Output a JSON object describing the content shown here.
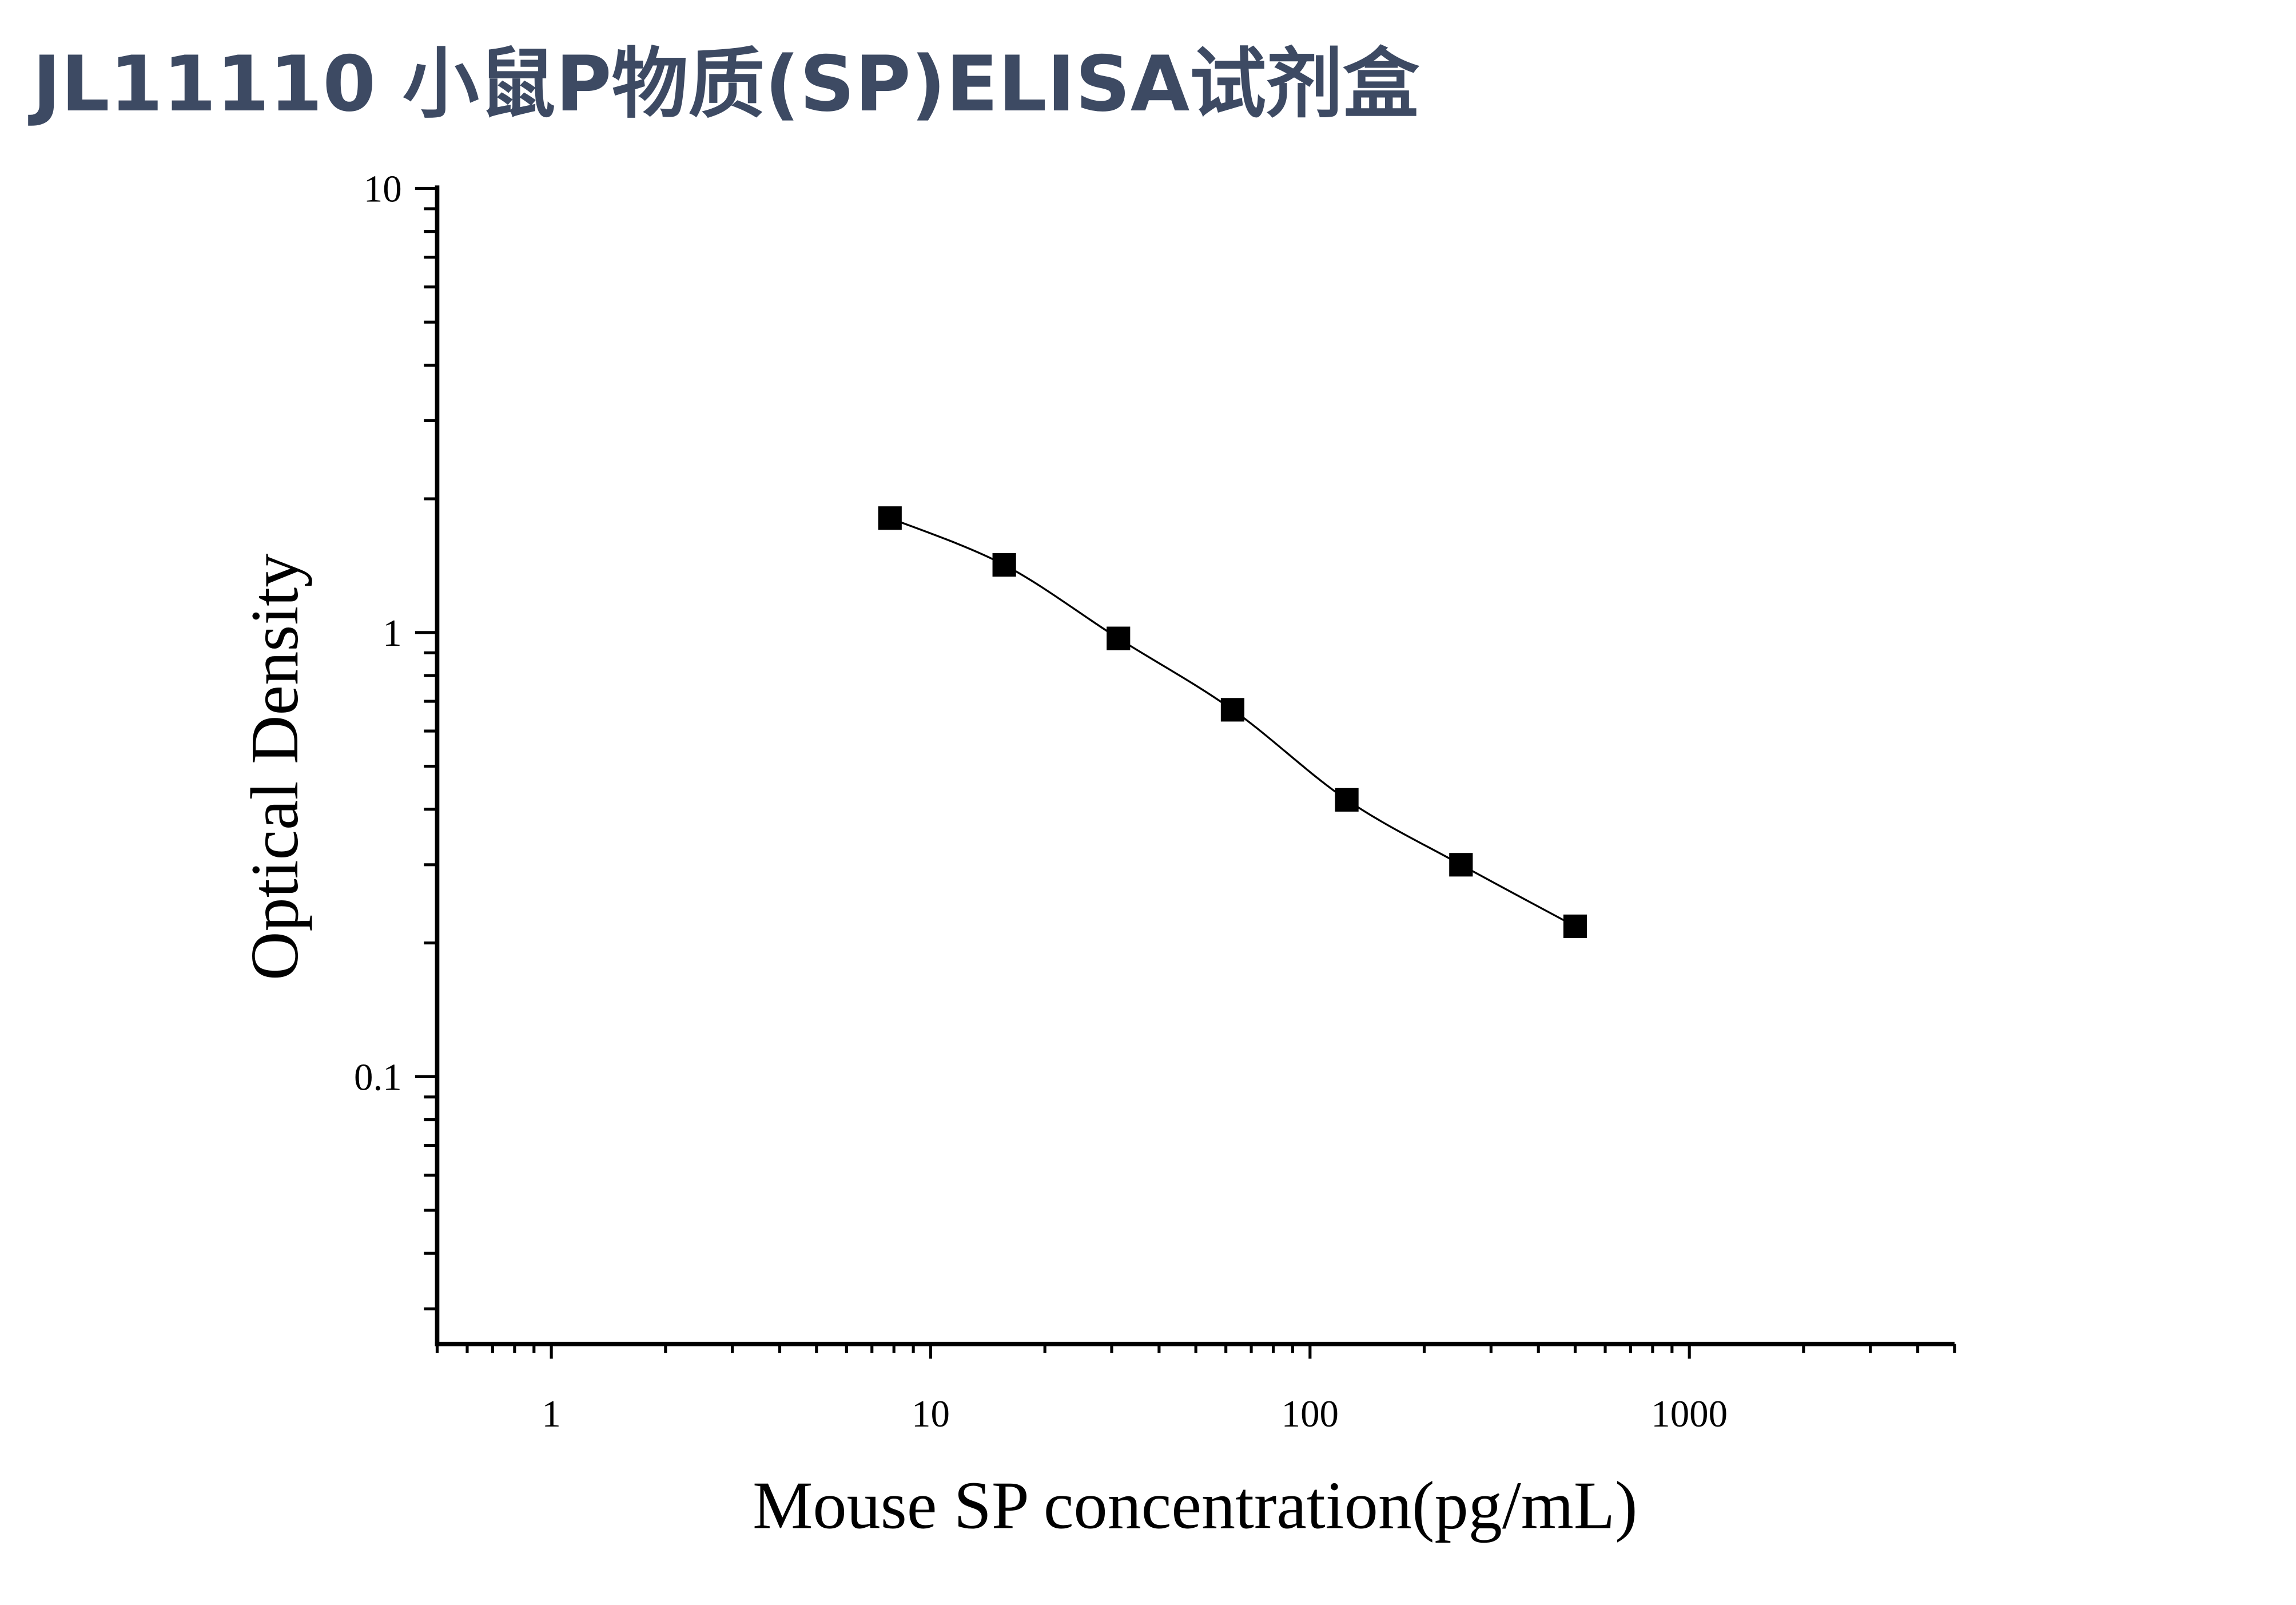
{
  "page_title": "JL11110 小鼠P物质(SP)ELISA试剂盒",
  "chart_data": {
    "type": "scatter",
    "title": "",
    "xlabel": "Mouse SP concentration(pg/mL)",
    "ylabel": "Optical Density",
    "x_scale": "log",
    "y_scale": "log",
    "xlim": [
      0.5,
      5000
    ],
    "ylim": [
      0.025,
      10
    ],
    "x_ticks": [
      1,
      10,
      100,
      1000
    ],
    "x_tick_labels": [
      "1",
      "10",
      "100",
      "1000"
    ],
    "y_ticks": [
      0.1,
      1,
      10
    ],
    "y_tick_labels": [
      "0.1",
      "1",
      "10"
    ],
    "grid": false,
    "legend": "none",
    "marker": "square",
    "fit_curve": true,
    "color": "#000000",
    "series": [
      {
        "x": [
          7.81,
          15.63,
          31.25,
          62.5,
          125,
          250,
          500
        ],
        "y": [
          1.81,
          1.42,
          0.97,
          0.67,
          0.42,
          0.3,
          0.218
        ]
      }
    ]
  }
}
